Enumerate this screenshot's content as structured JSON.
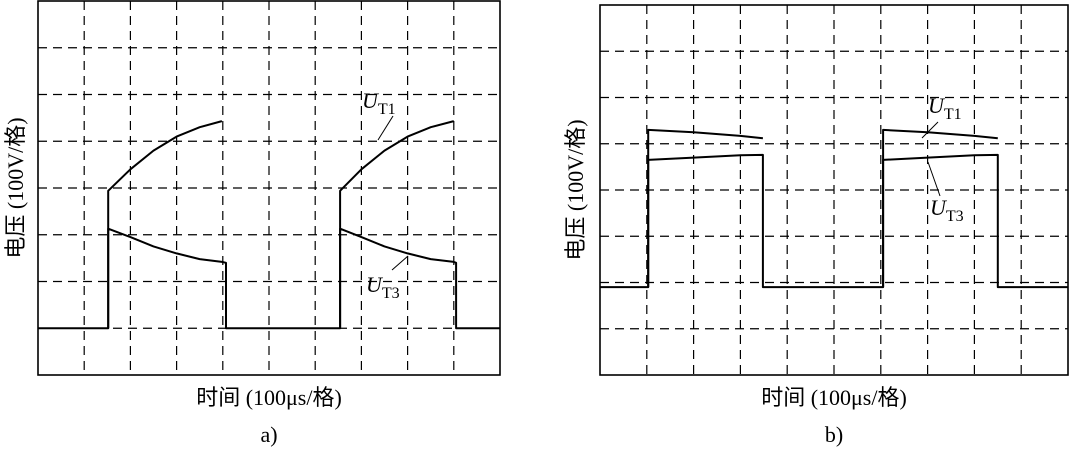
{
  "chart_data": [
    {
      "type": "line",
      "caption": "a)",
      "xlabel": "时间 (100μs/格)",
      "ylabel": "电压 (100V/格)",
      "xlim": [
        0,
        10
      ],
      "ylim": [
        0,
        8
      ],
      "xticks": [
        1,
        2,
        3,
        4,
        5,
        6,
        7,
        8,
        9
      ],
      "yticks": [
        1,
        2,
        3,
        4,
        5,
        6,
        7
      ],
      "grid": true,
      "x": [
        0,
        1.52,
        1.52,
        2.0,
        2.5,
        3.0,
        3.5,
        3.98,
        4.07,
        4.07,
        5.0,
        6.54,
        6.54,
        7.0,
        7.5,
        8.0,
        8.5,
        9.0,
        9.05,
        9.05,
        10
      ],
      "series": [
        {
          "name": "UT1",
          "color": "#000000",
          "values": [
            null,
            1.0,
            3.94,
            4.4,
            4.8,
            5.1,
            5.3,
            5.43,
            null,
            null,
            null,
            1.0,
            3.94,
            4.4,
            4.8,
            5.1,
            5.3,
            5.43,
            null,
            null,
            null
          ]
        },
        {
          "name": "UT3",
          "color": "#000000",
          "values": [
            1.0,
            1.0,
            3.13,
            2.95,
            2.75,
            2.6,
            2.48,
            2.42,
            2.4,
            1.0,
            1.0,
            1.0,
            3.13,
            2.95,
            2.75,
            2.6,
            2.48,
            2.42,
            2.4,
            1.0,
            1.0
          ]
        }
      ]
    },
    {
      "type": "line",
      "caption": "b)",
      "xlabel": "时间 (100μs/格)",
      "ylabel": "电压 (100V/格)",
      "xlim": [
        0,
        10
      ],
      "ylim": [
        0,
        8
      ],
      "xticks": [
        1,
        2,
        3,
        4,
        5,
        6,
        7,
        8,
        9
      ],
      "yticks": [
        1,
        2,
        3,
        4,
        5,
        6,
        7
      ],
      "grid": true,
      "x": [
        0,
        1.03,
        1.03,
        2.0,
        3.0,
        3.48,
        3.48,
        5.0,
        6.05,
        6.05,
        7.0,
        8.0,
        8.5,
        8.5,
        10
      ],
      "series": [
        {
          "name": "UT1",
          "color": "#000000",
          "values": [
            null,
            1.9,
            5.3,
            5.25,
            5.17,
            5.12,
            null,
            null,
            1.9,
            5.3,
            5.25,
            5.17,
            5.12,
            null,
            null
          ]
        },
        {
          "name": "UT3",
          "color": "#000000",
          "values": [
            1.9,
            1.9,
            4.65,
            4.7,
            4.75,
            4.76,
            1.9,
            1.9,
            1.9,
            4.65,
            4.7,
            4.75,
            4.76,
            1.9,
            1.9
          ]
        }
      ]
    }
  ]
}
